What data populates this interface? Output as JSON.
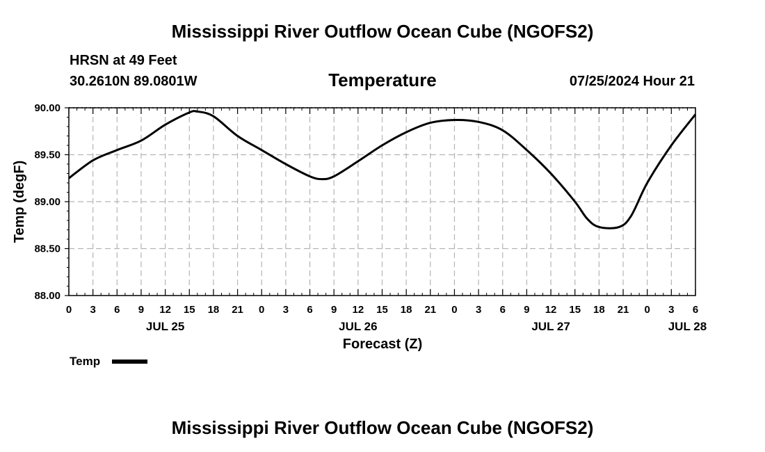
{
  "page": {
    "title": "Mississippi River Outflow Ocean Cube (NGOFS2)",
    "bottom_title": "Mississippi River Outflow Ocean Cube (NGOFS2)",
    "station": "HRSN at 49 Feet",
    "location": "30.2610N  89.0801W",
    "variable": "Temperature",
    "datetime": "07/25/2024 Hour 21"
  },
  "chart_data": {
    "type": "line",
    "title": "Temperature",
    "xlabel": "Forecast (Z)",
    "ylabel": "Temp (degF)",
    "ylim": [
      88.0,
      90.0
    ],
    "xlim": [
      0,
      78
    ],
    "y_ticks": [
      "88.00",
      "88.50",
      "89.00",
      "89.50",
      "90.00"
    ],
    "y_tick_values": [
      88.0,
      88.5,
      89.0,
      89.5,
      90.0
    ],
    "x_tick_values": [
      0,
      3,
      6,
      9,
      12,
      15,
      18,
      21,
      24,
      27,
      30,
      33,
      36,
      39,
      42,
      45,
      48,
      51,
      54,
      57,
      60,
      63,
      66,
      69,
      72,
      75,
      78
    ],
    "x_ticks": [
      "0",
      "3",
      "6",
      "9",
      "12",
      "15",
      "18",
      "21",
      "0",
      "3",
      "6",
      "9",
      "12",
      "15",
      "18",
      "21",
      "0",
      "3",
      "6",
      "9",
      "12",
      "15",
      "18",
      "21",
      "0",
      "3",
      "6"
    ],
    "day_labels": [
      {
        "text": "JUL 25",
        "at": 12
      },
      {
        "text": "JUL 26",
        "at": 36
      },
      {
        "text": "JUL 27",
        "at": 60
      },
      {
        "text": "JUL 28",
        "at": 77
      }
    ],
    "grid": true,
    "legend": {
      "label": "Temp",
      "position": "bottom-left"
    },
    "series": [
      {
        "name": "Temp",
        "x": [
          0,
          3,
          6,
          9,
          12,
          15,
          16,
          18,
          21,
          24,
          27,
          30,
          31.5,
          33,
          36,
          39,
          42,
          45,
          48,
          51,
          54,
          57,
          60,
          63,
          64.5,
          66,
          68.5,
          70,
          72,
          75,
          78
        ],
        "values": [
          89.25,
          89.44,
          89.55,
          89.65,
          89.82,
          89.95,
          89.96,
          89.91,
          89.7,
          89.55,
          89.4,
          89.27,
          89.24,
          89.27,
          89.43,
          89.6,
          89.74,
          89.84,
          89.87,
          89.85,
          89.76,
          89.55,
          89.3,
          89.0,
          88.82,
          88.73,
          88.73,
          88.85,
          89.2,
          89.6,
          89.93
        ]
      }
    ]
  }
}
